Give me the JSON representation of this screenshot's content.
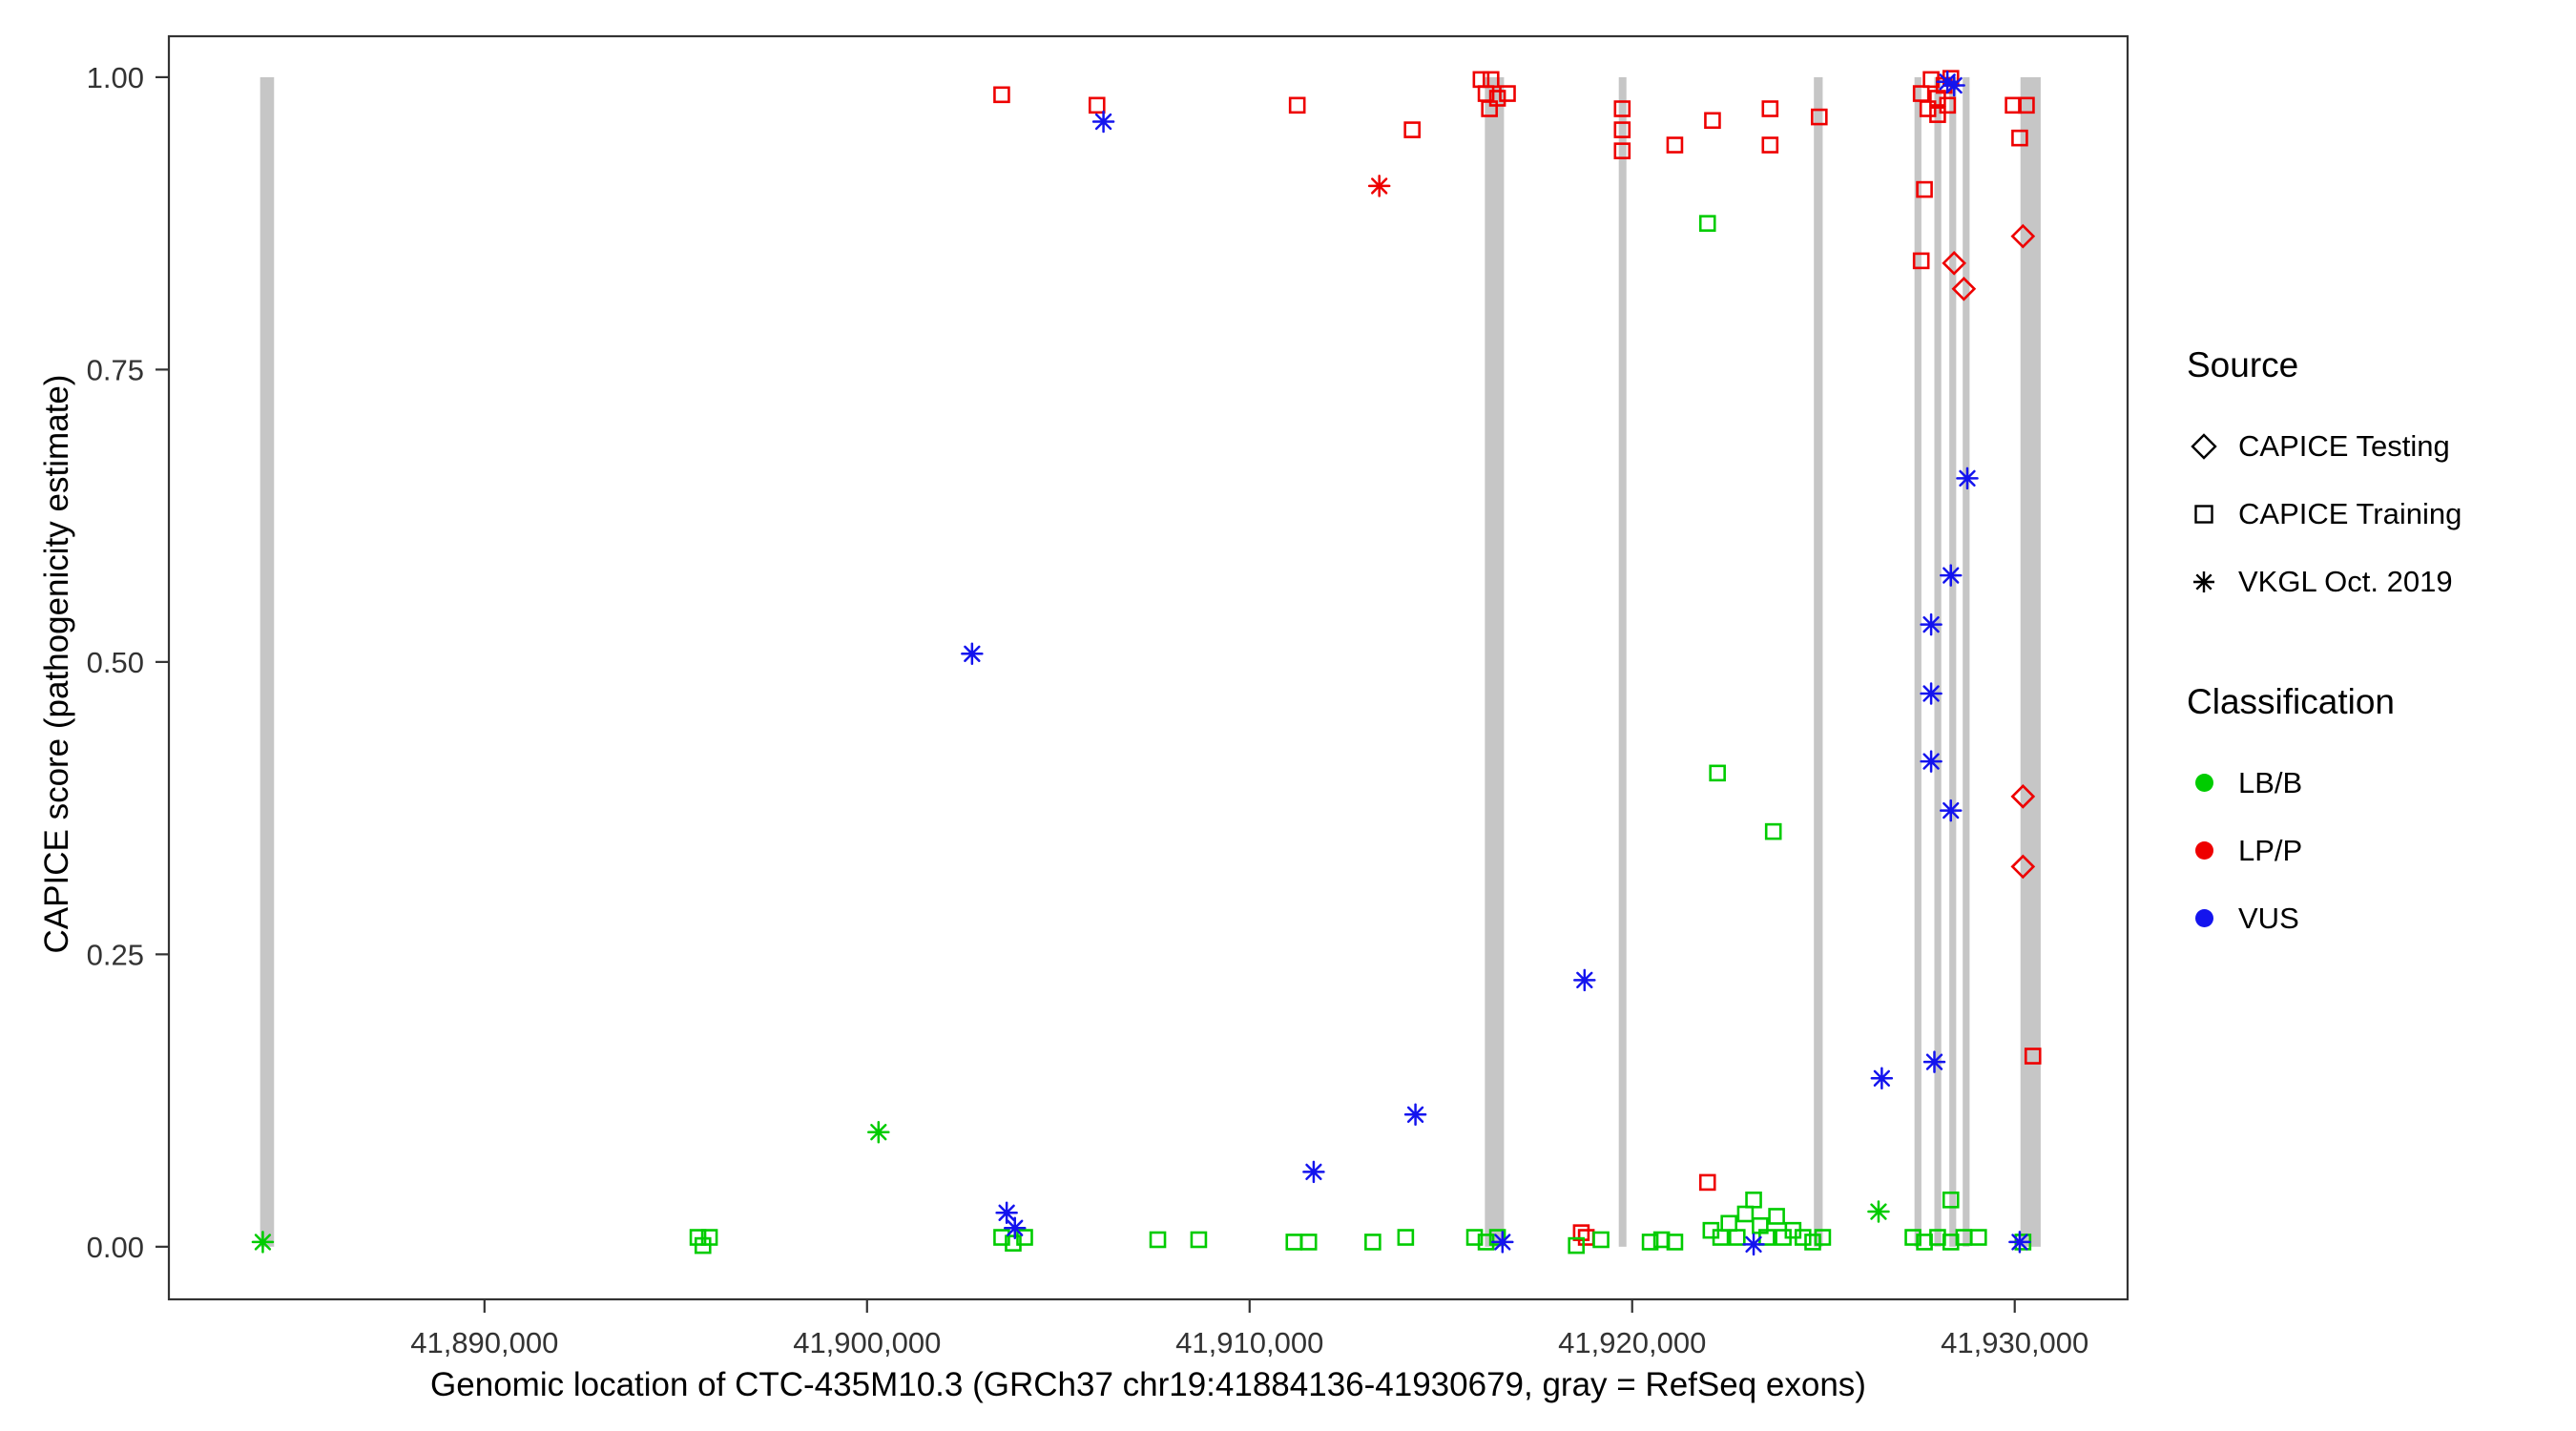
{
  "legend": {
    "source_title": "Source",
    "source_items": [
      {
        "label": "CAPICE Testing",
        "shape": "diamond"
      },
      {
        "label": "CAPICE Training",
        "shape": "square"
      },
      {
        "label": "VKGL Oct. 2019",
        "shape": "asterisk"
      }
    ],
    "classification_title": "Classification",
    "classification_items": [
      {
        "label": "LB/B",
        "class": "LB/B"
      },
      {
        "label": "LP/P",
        "class": "LP/P"
      },
      {
        "label": "VUS",
        "class": "VUS"
      }
    ]
  },
  "chart_data": {
    "type": "scatter",
    "title": "",
    "xlabel": "Genomic location of CTC-435M10.3 (GRCh37 chr19:41884136-41930679, gray = RefSeq exons)",
    "ylabel": "CAPICE score (pathogenicity estimate)",
    "xlim": [
      41881750,
      41932950
    ],
    "ylim": [
      -0.045,
      1.035
    ],
    "x_ticks": [
      {
        "value": 41890000,
        "label": "41,890,000"
      },
      {
        "value": 41900000,
        "label": "41,900,000"
      },
      {
        "value": 41910000,
        "label": "41,910,000"
      },
      {
        "value": 41920000,
        "label": "41,920,000"
      },
      {
        "value": 41930000,
        "label": "41,930,000"
      }
    ],
    "y_ticks": [
      {
        "value": 0.0,
        "label": "0.00"
      },
      {
        "value": 0.25,
        "label": "0.25"
      },
      {
        "value": 0.5,
        "label": "0.50"
      },
      {
        "value": 0.75,
        "label": "0.75"
      },
      {
        "value": 1.0,
        "label": "1.00"
      }
    ],
    "exon_color": "#c6c6c6",
    "classification_colors": {
      "LB/B": "#00cc00",
      "LP/P": "#ee0000",
      "VUS": "#1414ee"
    },
    "exons": [
      [
        41884136,
        41884500
      ],
      [
        41916150,
        41916650
      ],
      [
        41919650,
        41919850
      ],
      [
        41924750,
        41924980
      ],
      [
        41927380,
        41927560
      ],
      [
        41927900,
        41928080
      ],
      [
        41928290,
        41928470
      ],
      [
        41928640,
        41928820
      ],
      [
        41930150,
        41930679
      ]
    ],
    "series": [
      {
        "name": "CAPICE Testing / LP/P",
        "source": "CAPICE Testing",
        "classification": "LP/P",
        "shape": "diamond",
        "points": [
          [
            41928415,
            0.841
          ],
          [
            41928670,
            0.819
          ],
          [
            41930215,
            0.864
          ],
          [
            41930215,
            0.385
          ],
          [
            41930215,
            0.325
          ]
        ]
      },
      {
        "name": "CAPICE Training / LP/P",
        "source": "CAPICE Training",
        "classification": "LP/P",
        "shape": "square",
        "points": [
          [
            41903520,
            0.985
          ],
          [
            41906010,
            0.976
          ],
          [
            41911245,
            0.976
          ],
          [
            41914250,
            0.955
          ],
          [
            41916050,
            0.998
          ],
          [
            41916310,
            0.998
          ],
          [
            41916180,
            0.986
          ],
          [
            41916480,
            0.982
          ],
          [
            41916740,
            0.986
          ],
          [
            41916270,
            0.973
          ],
          [
            41919740,
            0.973
          ],
          [
            41919740,
            0.955
          ],
          [
            41919740,
            0.937
          ],
          [
            41921115,
            0.942
          ],
          [
            41922100,
            0.963
          ],
          [
            41923605,
            0.973
          ],
          [
            41923605,
            0.942
          ],
          [
            41924890,
            0.966
          ],
          [
            41927555,
            0.986
          ],
          [
            41927815,
            0.998
          ],
          [
            41927985,
            0.982
          ],
          [
            41928155,
            0.993
          ],
          [
            41928330,
            0.999
          ],
          [
            41928245,
            0.976
          ],
          [
            41927985,
            0.968
          ],
          [
            41927730,
            0.973
          ],
          [
            41927640,
            0.904
          ],
          [
            41927555,
            0.843
          ],
          [
            41929960,
            0.976
          ],
          [
            41930305,
            0.976
          ],
          [
            41930130,
            0.948
          ],
          [
            41930475,
            0.163
          ],
          [
            41918670,
            0.012
          ],
          [
            41918800,
            0.008
          ],
          [
            41921970,
            0.055
          ]
        ]
      },
      {
        "name": "CAPICE Training / LB/B",
        "source": "CAPICE Training",
        "classification": "LB/B",
        "shape": "square",
        "points": [
          [
            41921970,
            0.875
          ],
          [
            41922230,
            0.405
          ],
          [
            41923690,
            0.355
          ],
          [
            41895580,
            0.008
          ],
          [
            41895880,
            0.008
          ],
          [
            41895710,
            0.001
          ],
          [
            41903520,
            0.008
          ],
          [
            41903820,
            0.003
          ],
          [
            41904120,
            0.008
          ],
          [
            41907600,
            0.006
          ],
          [
            41908670,
            0.006
          ],
          [
            41911160,
            0.004
          ],
          [
            41911545,
            0.004
          ],
          [
            41913220,
            0.004
          ],
          [
            41914080,
            0.008
          ],
          [
            41915880,
            0.008
          ],
          [
            41916180,
            0.004
          ],
          [
            41916480,
            0.008
          ],
          [
            41918540,
            0.001
          ],
          [
            41919185,
            0.006
          ],
          [
            41920470,
            0.004
          ],
          [
            41920770,
            0.006
          ],
          [
            41921115,
            0.004
          ],
          [
            41922060,
            0.014
          ],
          [
            41922315,
            0.008
          ],
          [
            41922530,
            0.02
          ],
          [
            41922745,
            0.008
          ],
          [
            41922960,
            0.028
          ],
          [
            41923175,
            0.04
          ],
          [
            41923345,
            0.018
          ],
          [
            41923520,
            0.008
          ],
          [
            41923775,
            0.026
          ],
          [
            41923950,
            0.008
          ],
          [
            41924205,
            0.014
          ],
          [
            41924465,
            0.008
          ],
          [
            41924720,
            0.004
          ],
          [
            41924980,
            0.008
          ],
          [
            41927340,
            0.008
          ],
          [
            41927640,
            0.004
          ],
          [
            41927985,
            0.008
          ],
          [
            41928330,
            0.004
          ],
          [
            41928670,
            0.008
          ],
          [
            41929055,
            0.008
          ],
          [
            41928330,
            0.04
          ],
          [
            41930215,
            0.004
          ]
        ]
      },
      {
        "name": "VKGL Oct. 2019 / LP/P",
        "source": "VKGL Oct. 2019",
        "classification": "LP/P",
        "shape": "asterisk",
        "points": [
          [
            41913390,
            0.907
          ]
        ]
      },
      {
        "name": "VKGL Oct. 2019 / LB/B",
        "source": "VKGL Oct. 2019",
        "classification": "LB/B",
        "shape": "asterisk",
        "points": [
          [
            41900300,
            0.098
          ],
          [
            41926440,
            0.03
          ],
          [
            41884205,
            0.004
          ]
        ]
      },
      {
        "name": "VKGL Oct. 2019 / VUS",
        "source": "VKGL Oct. 2019",
        "classification": "VUS",
        "shape": "asterisk",
        "points": [
          [
            41906180,
            0.962
          ],
          [
            41902745,
            0.507
          ],
          [
            41928415,
            0.993
          ],
          [
            41928240,
            0.996
          ],
          [
            41928760,
            0.657
          ],
          [
            41928330,
            0.574
          ],
          [
            41927815,
            0.532
          ],
          [
            41927815,
            0.473
          ],
          [
            41927815,
            0.415
          ],
          [
            41928330,
            0.373
          ],
          [
            41918755,
            0.228
          ],
          [
            41914335,
            0.113
          ],
          [
            41911675,
            0.064
          ],
          [
            41926525,
            0.144
          ],
          [
            41927900,
            0.158
          ],
          [
            41903650,
            0.029
          ],
          [
            41903865,
            0.016
          ],
          [
            41916610,
            0.004
          ],
          [
            41923175,
            0.002
          ],
          [
            41930130,
            0.004
          ]
        ]
      }
    ]
  }
}
